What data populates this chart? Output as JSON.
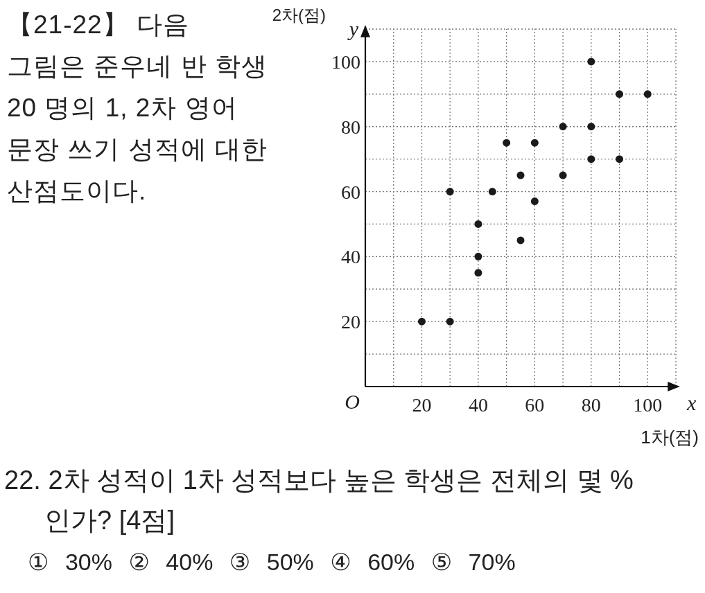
{
  "chart_data": {
    "type": "scatter",
    "title": "【21-22】 다음 그림은 준우네 반 학생 20 명의 1, 2차 영어 문장 쓰기 성적에 대한 산점도이다.",
    "xlabel": "1차(점)",
    "ylabel": "2차(점)",
    "x": [
      20,
      30,
      30,
      40,
      40,
      40,
      45,
      50,
      55,
      55,
      60,
      60,
      70,
      70,
      80,
      80,
      80,
      90,
      90,
      100
    ],
    "series": [
      {
        "color": "#1a1a1a",
        "values": [
          20,
          20,
          60,
          35,
          40,
          50,
          60,
          75,
          65,
          45,
          75,
          57,
          80,
          65,
          100,
          80,
          70,
          90,
          70,
          90
        ]
      }
    ],
    "xlim": [
      0,
      110
    ],
    "ylim": [
      0,
      110
    ],
    "xticks": [
      {
        "value": 10,
        "label": null
      },
      20,
      {
        "value": 30,
        "label": null
      },
      40,
      {
        "value": 50,
        "label": null
      },
      60,
      {
        "value": 70,
        "label": null
      },
      80,
      {
        "value": 90,
        "label": null
      },
      100,
      {
        "value": 110,
        "label": null
      }
    ],
    "yticks": [
      {
        "value": 10,
        "label": null
      },
      20,
      {
        "value": 30,
        "label": null
      },
      40,
      {
        "value": 50,
        "label": null
      },
      60,
      {
        "value": 70,
        "label": null
      },
      80,
      {
        "value": 90,
        "label": null
      },
      100,
      {
        "value": 110,
        "label": null
      }
    ],
    "grid": true,
    "marker": "circle",
    "annotations": [
      "O",
      "x",
      "y",
      "22. 2차 성적이 1차 성적보다 높은 학생은 전체의 몇 %인가? [4점]",
      "① 30% ② 40% ③ 50% ④ 60% ⑤ 70%"
    ]
  }
}
